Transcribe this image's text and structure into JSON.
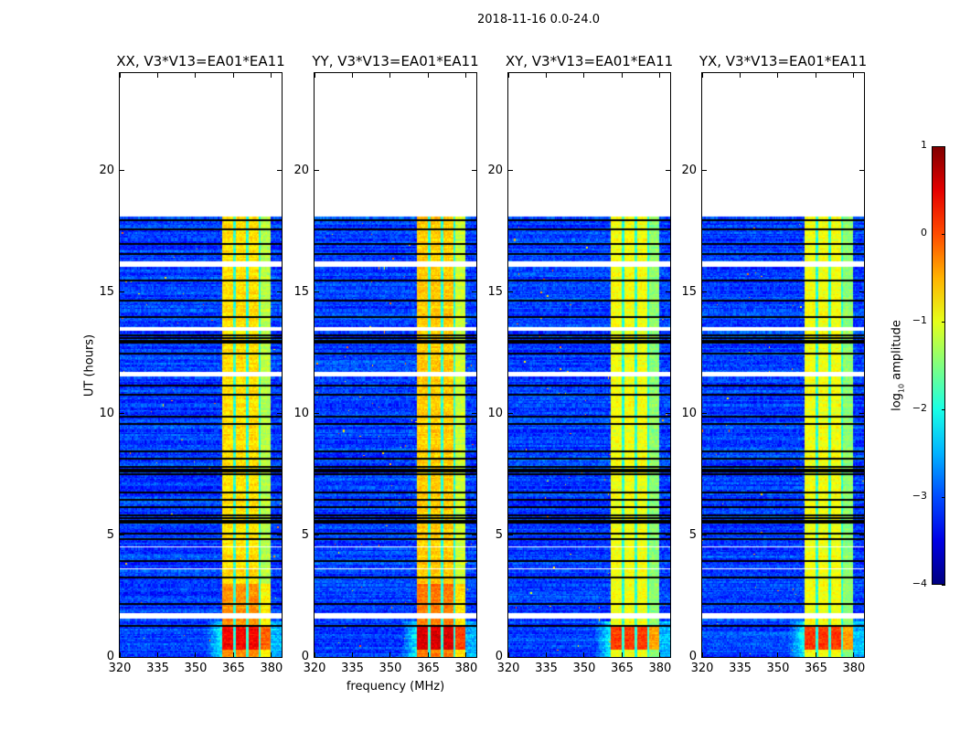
{
  "chart_data": {
    "type": "heatmap",
    "title": "2018-11-16 0.0-24.0",
    "xlabel": "frequency (MHz)",
    "ylabel": "UT (hours)",
    "xlim": [
      320,
      384
    ],
    "ylim": [
      0,
      24
    ],
    "xticks": [
      320,
      335,
      350,
      365,
      380
    ],
    "yticks": [
      0,
      5,
      10,
      15,
      20
    ],
    "data_time_range": [
      0,
      18.1
    ],
    "bright_band_mhz": [
      360.5,
      380
    ],
    "band_gaps_mhz": [
      365.4,
      370.3,
      375.2
    ],
    "flagged_gaps_hours": [
      [
        16.0,
        16.3
      ],
      [
        13.4,
        13.6
      ],
      [
        11.5,
        11.75
      ],
      [
        1.55,
        1.85
      ],
      [
        4.45,
        4.55
      ],
      [
        3.55,
        3.65
      ],
      [
        10.4,
        10.45
      ],
      [
        8.85,
        8.9
      ],
      [
        6.95,
        7.0
      ],
      [
        2.95,
        3.0
      ],
      [
        0.45,
        0.5
      ],
      [
        14.3,
        14.35
      ],
      [
        15.2,
        15.25
      ],
      [
        17.2,
        17.25
      ],
      [
        12.1,
        12.15
      ],
      [
        9.3,
        9.35
      ]
    ],
    "dark_rows_hours": [
      7.55,
      7.65,
      7.75,
      7.85,
      5.55,
      5.65,
      5.75,
      5.85,
      12.95,
      13.05,
      13.15,
      13.25,
      6.2,
      6.5,
      6.8,
      9.6,
      9.9,
      8.2,
      8.5,
      4.9,
      5.1,
      2.2,
      1.3,
      17.6,
      17.0,
      16.6,
      15.5,
      14.7,
      14.0,
      11.2,
      10.8,
      3.3,
      4.0,
      12.5,
      18.0
    ],
    "colorbar": {
      "label_main": "log",
      "label_sub": "10",
      "label_rest": " amplitude",
      "range": [
        -4,
        1
      ],
      "ticks": [
        "1",
        "0",
        "−1",
        "−2",
        "−3",
        "−4"
      ],
      "tick_values": [
        1,
        0,
        -1,
        -2,
        -3,
        -4
      ],
      "colormap": "jet"
    },
    "panels": [
      {
        "title": "XX, V3*V13=EA01*EA11",
        "pol": "XX",
        "band_level": -0.9,
        "low_red": 0.5
      },
      {
        "title": "YY, V3*V13=EA01*EA11",
        "pol": "YY",
        "band_level": -0.8,
        "low_red": 0.6
      },
      {
        "title": "XY, V3*V13=EA01*EA11",
        "pol": "XY",
        "band_level": -1.1,
        "low_red": 0.4
      },
      {
        "title": "YX, V3*V13=EA01*EA11",
        "pol": "YX",
        "band_level": -1.1,
        "low_red": 0.4
      }
    ]
  }
}
